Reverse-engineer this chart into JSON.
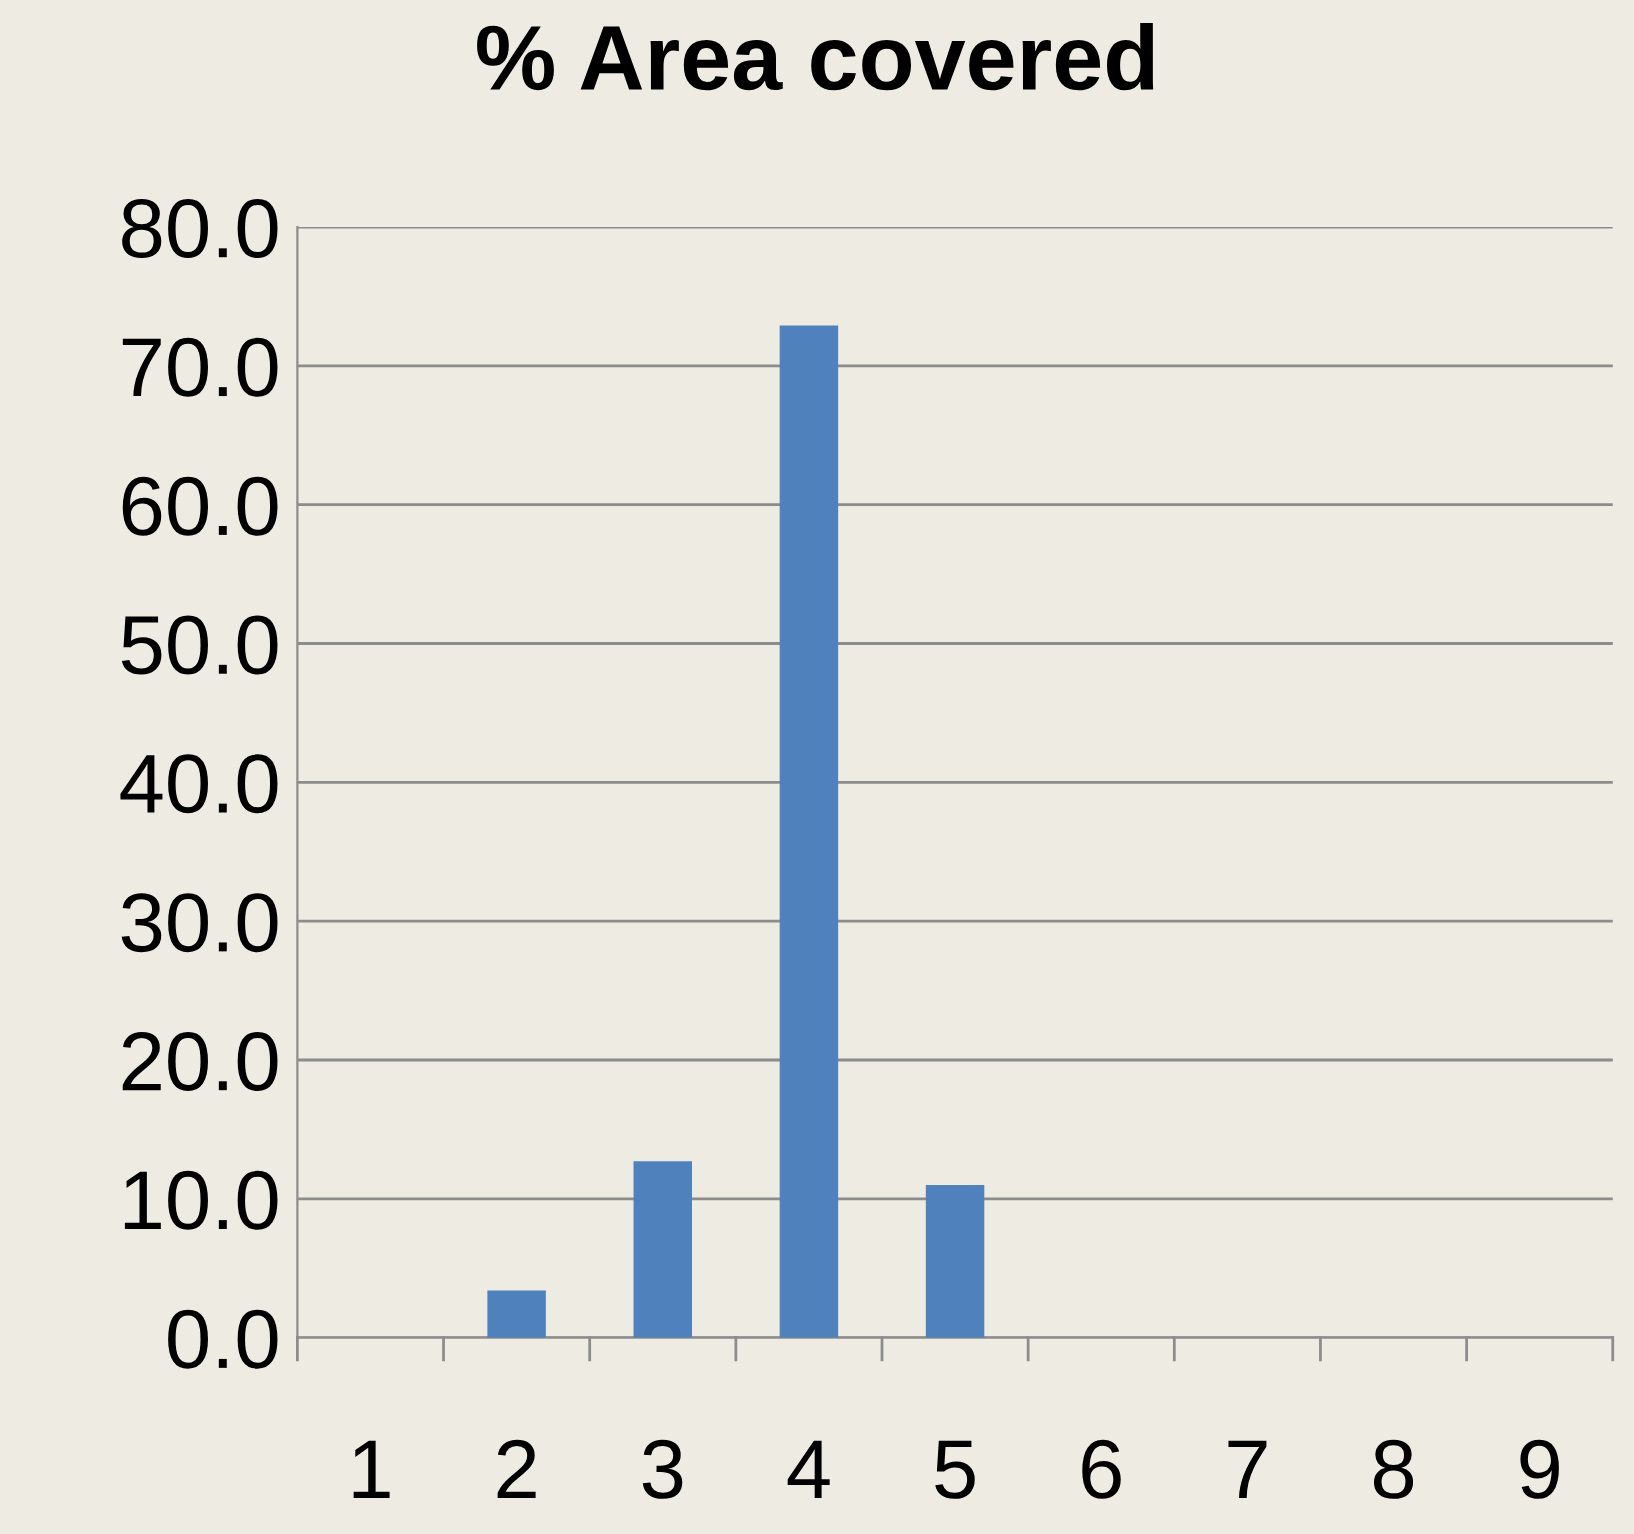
{
  "chart_data": {
    "type": "bar",
    "title": "% Area covered",
    "categories": [
      "1",
      "2",
      "3",
      "4",
      "5",
      "6",
      "7",
      "8",
      "9"
    ],
    "values": [
      0,
      3.4,
      12.7,
      72.9,
      11.0,
      0,
      0,
      0,
      0
    ],
    "color": "#4f81bd",
    "ylim": [
      0,
      80
    ],
    "yticks": [
      {
        "value": 0,
        "label": "0.0"
      },
      {
        "value": 10,
        "label": "10.0"
      },
      {
        "value": 20,
        "label": "20.0"
      },
      {
        "value": 30,
        "label": "30.0"
      },
      {
        "value": 40,
        "label": "40.0"
      },
      {
        "value": 50,
        "label": "50.0"
      },
      {
        "value": 60,
        "label": "60.0"
      },
      {
        "value": 70,
        "label": "70.0"
      },
      {
        "value": 80,
        "label": "80.0"
      }
    ],
    "grid": "y",
    "legend": false
  }
}
